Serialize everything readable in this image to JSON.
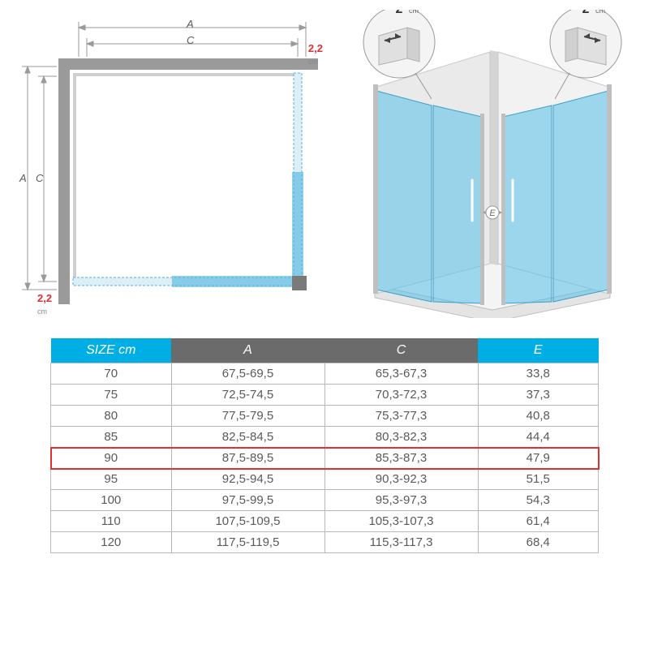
{
  "diagram": {
    "plan": {
      "tolerance_label": "2,2",
      "tolerance_unit": "cm",
      "dim_A": "A",
      "dim_C": "C",
      "frame_color": "#7a7a7a",
      "door_color": "#4db4e0",
      "dimension_color": "#9a9a9a",
      "accent_color": "#dc3232",
      "bg": "#ffffff"
    },
    "iso": {
      "adjustment_label": "2",
      "adjustment_unit": "cm",
      "entry_label": "E",
      "glass_color": "#55bfe8",
      "glass_opacity": 0.55,
      "frame_color": "#9a9a9a",
      "circle_fill": "#f4f4f4",
      "arrow_color": "#444444"
    }
  },
  "table": {
    "header_bg_primary": "#00aee6",
    "header_bg_secondary": "#6b6b6b",
    "header_text_color": "#ffffff",
    "border_color": "#b8b8b8",
    "cell_text_color": "#5a5a5a",
    "highlight_color": "#dc3232",
    "highlight_row_index": 4,
    "columns": [
      "SIZE cm",
      "A",
      "C",
      "E"
    ],
    "column_widths_pct": [
      22,
      28,
      28,
      22
    ],
    "rows": [
      [
        "70",
        "67,5-69,5",
        "65,3-67,3",
        "33,8"
      ],
      [
        "75",
        "72,5-74,5",
        "70,3-72,3",
        "37,3"
      ],
      [
        "80",
        "77,5-79,5",
        "75,3-77,3",
        "40,8"
      ],
      [
        "85",
        "82,5-84,5",
        "80,3-82,3",
        "44,4"
      ],
      [
        "90",
        "87,5-89,5",
        "85,3-87,3",
        "47,9"
      ],
      [
        "95",
        "92,5-94,5",
        "90,3-92,3",
        "51,5"
      ],
      [
        "100",
        "97,5-99,5",
        "95,3-97,3",
        "54,3"
      ],
      [
        "110",
        "107,5-109,5",
        "105,3-107,3",
        "61,4"
      ],
      [
        "120",
        "117,5-119,5",
        "115,3-117,3",
        "68,4"
      ]
    ]
  }
}
